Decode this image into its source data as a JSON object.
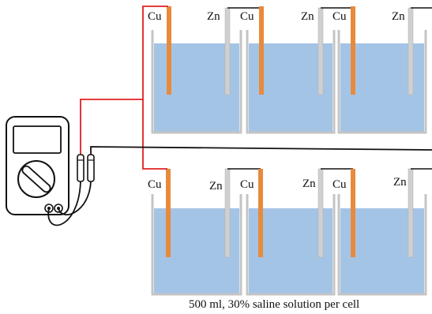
{
  "electrode_labels": {
    "copper": "Cu",
    "zinc": "Zn"
  },
  "caption": "500 ml, 30% saline solution per cell",
  "colors": {
    "solution": "#a4c4e6",
    "copper": "#e88a3c",
    "zinc": "#d0d0d0",
    "tank_wall": "#c4c4c4",
    "red_wire": "#e02020",
    "black_wire": "#111111"
  },
  "components": {
    "multimeter": "multimeter-icon",
    "probes": "probe-icon"
  }
}
